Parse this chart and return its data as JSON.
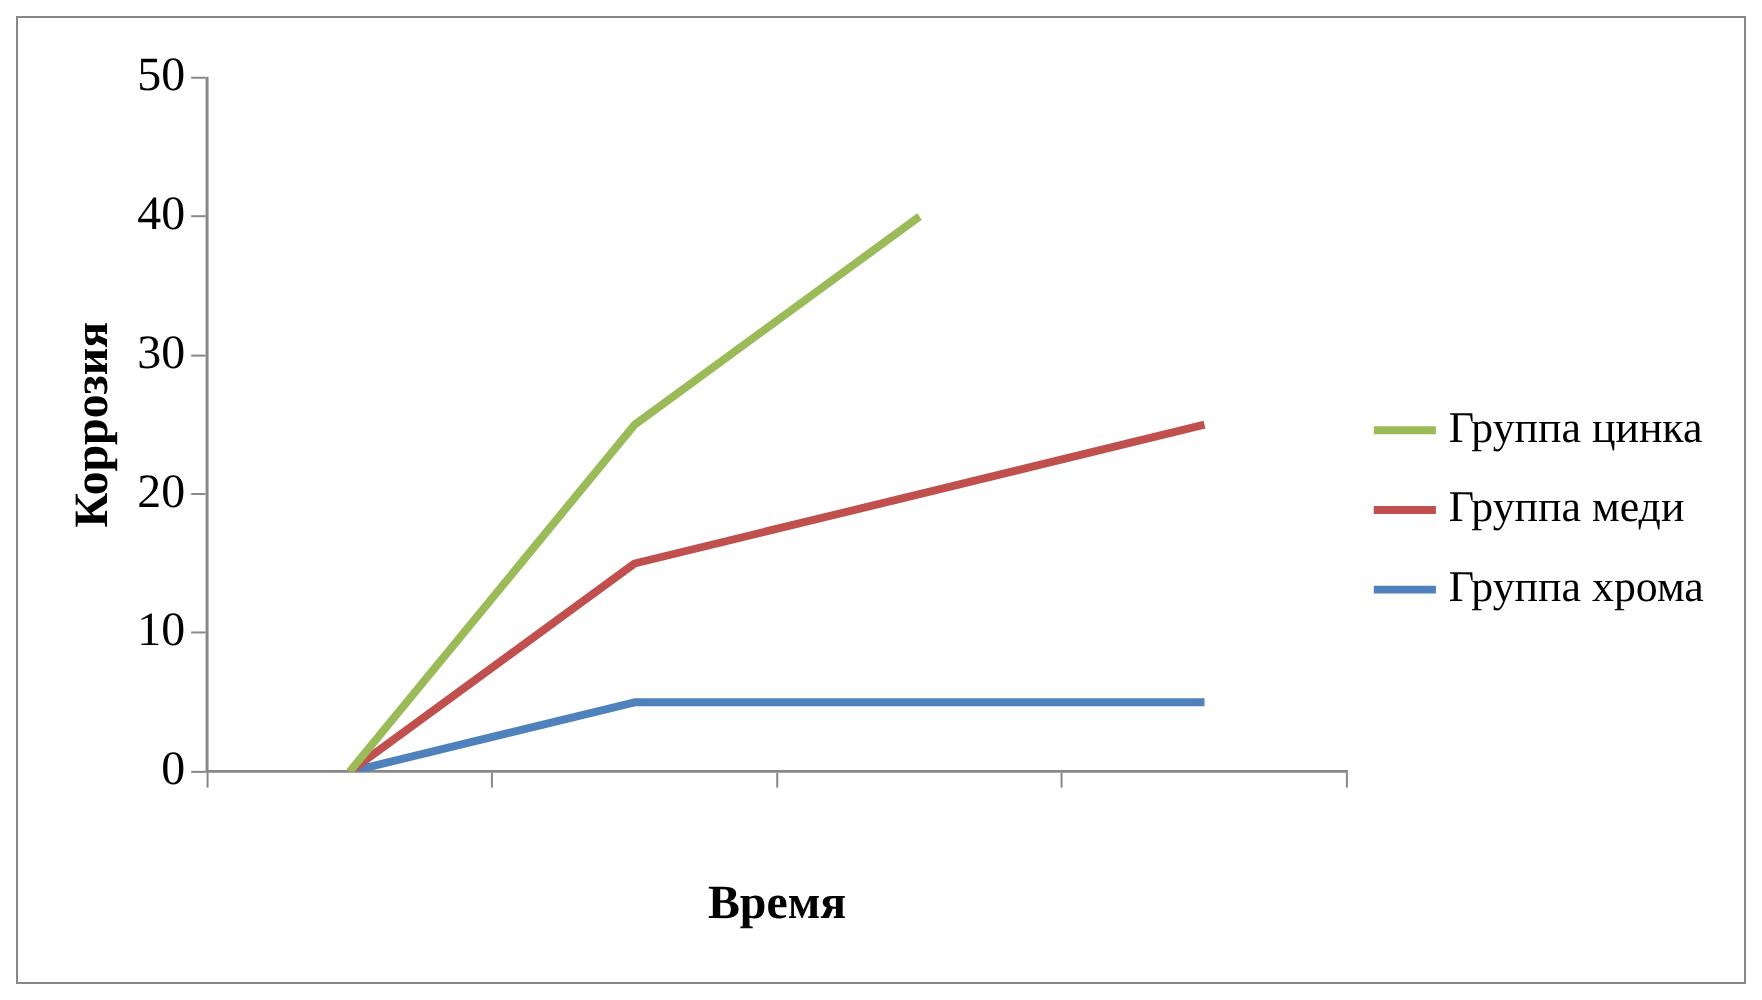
{
  "chart_data": {
    "type": "line",
    "xlabel": "Время",
    "ylabel": "Коррозия",
    "categories": [
      null,
      null,
      null,
      null
    ],
    "series": [
      {
        "name": "Группа цинка",
        "color": "#9bbb59",
        "values": [
          0,
          25,
          40,
          null
        ]
      },
      {
        "name": "Группа меди",
        "color": "#c0504d",
        "values": [
          0,
          15,
          20,
          25
        ]
      },
      {
        "name": "Группа хрома",
        "color": "#4f81bd",
        "values": [
          0,
          5,
          5,
          5
        ]
      }
    ],
    "ylim": [
      0,
      50
    ],
    "yticks": [
      0,
      10,
      20,
      30,
      40,
      50
    ],
    "grid": false,
    "legend": "right",
    "marker": "none",
    "line_style": "solid"
  }
}
